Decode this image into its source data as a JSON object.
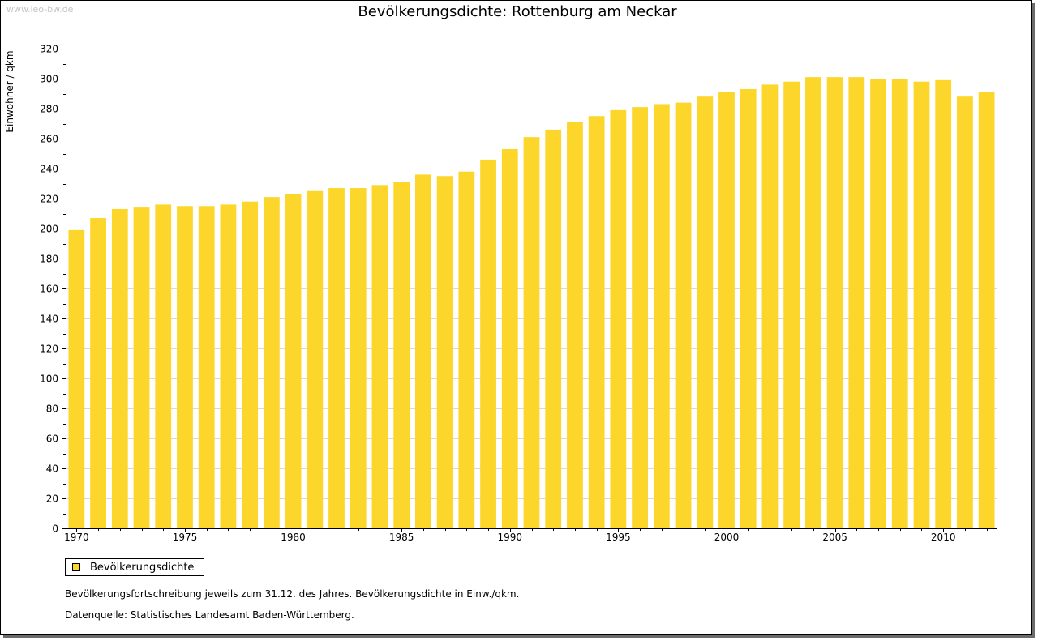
{
  "watermark": "www.leo-bw.de",
  "colors": {
    "bar": "#FCD62B",
    "grid": "#d9d9d9",
    "axis": "#000000"
  },
  "chart_data": {
    "type": "bar",
    "title": "Bevölkerungsdichte: Rottenburg am Neckar",
    "xlabel": "",
    "ylabel": "Einwohner / qkm",
    "ylim": [
      0,
      320
    ],
    "yticks": [
      0,
      20,
      40,
      60,
      80,
      100,
      120,
      140,
      160,
      180,
      200,
      220,
      240,
      260,
      280,
      300,
      320
    ],
    "xtick_labels": [
      "1970",
      "1975",
      "1980",
      "1985",
      "1990",
      "1995",
      "2000",
      "2005",
      "2010"
    ],
    "grid": true,
    "legend_position": "bottom-left",
    "categories": [
      1970,
      1971,
      1972,
      1973,
      1974,
      1975,
      1976,
      1977,
      1978,
      1979,
      1980,
      1981,
      1982,
      1983,
      1984,
      1985,
      1986,
      1987,
      1988,
      1989,
      1990,
      1991,
      1992,
      1993,
      1994,
      1995,
      1996,
      1997,
      1998,
      1999,
      2000,
      2001,
      2002,
      2003,
      2004,
      2005,
      2006,
      2007,
      2008,
      2009,
      2010,
      2011,
      2012
    ],
    "series": [
      {
        "name": "Bevölkerungsdichte",
        "values": [
          199,
          207,
          213,
          214,
          216,
          215,
          215,
          216,
          218,
          221,
          223,
          225,
          227,
          227,
          229,
          231,
          236,
          235,
          238,
          246,
          253,
          261,
          266,
          271,
          275,
          279,
          281,
          283,
          284,
          288,
          291,
          293,
          296,
          298,
          301,
          301,
          301,
          300,
          300,
          298,
          299,
          288,
          291
        ]
      }
    ]
  },
  "legend": {
    "label": "Bevölkerungsdichte"
  },
  "notes": {
    "line1": "Bevölkerungsfortschreibung jeweils zum 31.12. des Jahres. Bevölkerungsdichte in Einw./qkm.",
    "line2": "Datenquelle: Statistisches Landesamt Baden-Württemberg."
  }
}
